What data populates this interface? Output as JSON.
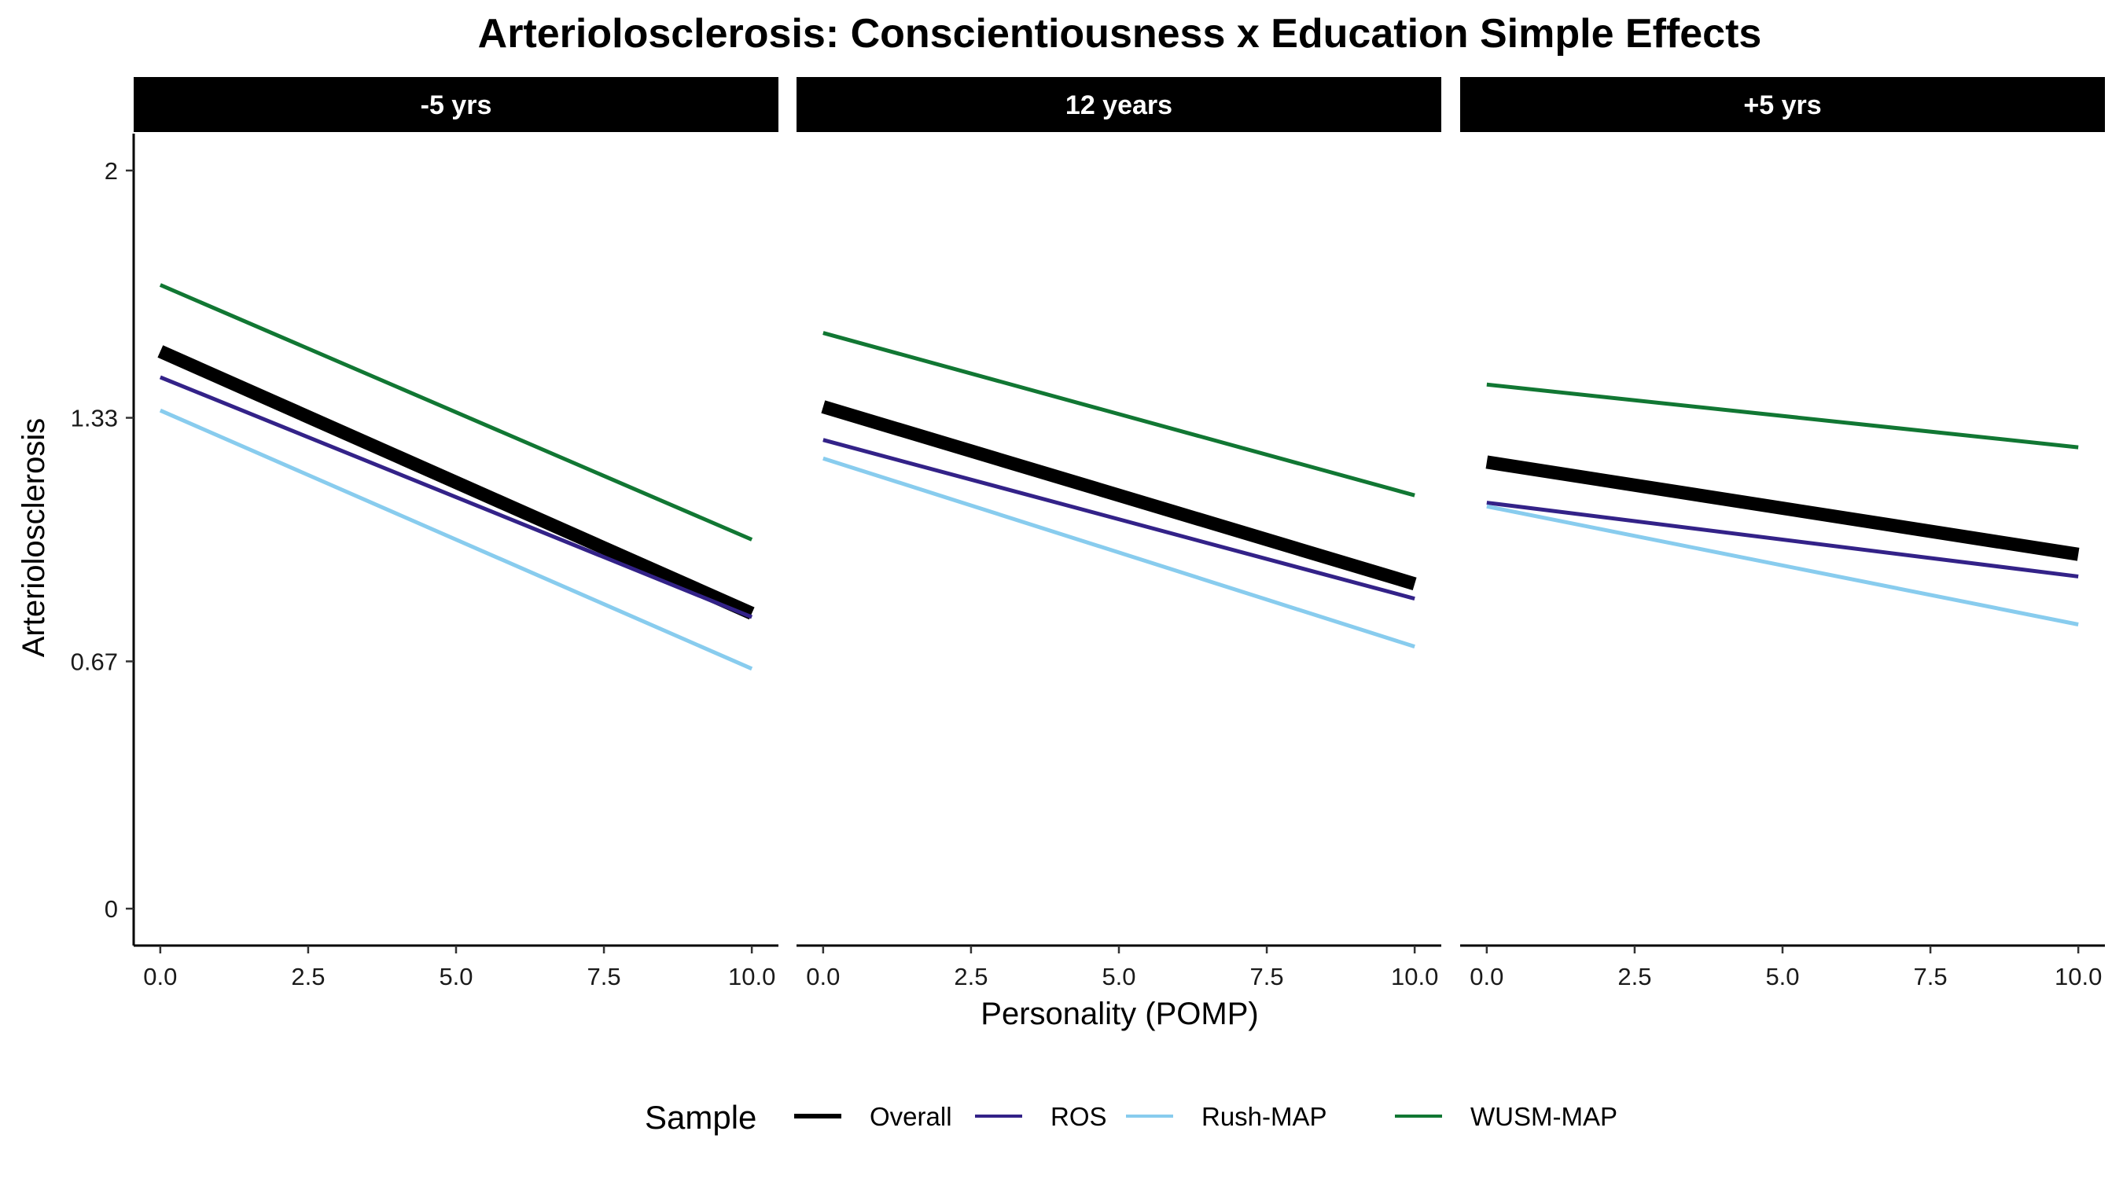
{
  "chart_data": {
    "type": "line",
    "title": "Arteriolosclerosis: Conscientiousness x Education Simple Effects",
    "xlabel": "Personality (POMP)",
    "ylabel": "Arteriolosclerosis",
    "xlim": [
      -0.45,
      10.45
    ],
    "ylim": [
      -0.1,
      2.1
    ],
    "x_ticks": [
      0,
      2.5,
      5,
      7.5,
      10
    ],
    "x_tick_labels": [
      "0.0",
      "2.5",
      "5.0",
      "7.5",
      "10.0"
    ],
    "y_ticks": [
      0,
      0.67,
      1.33,
      2
    ],
    "y_tick_labels": [
      "0",
      "0.67",
      "1.33",
      "2"
    ],
    "grid": false,
    "legend": {
      "title": "Sample",
      "position": "bottom",
      "entries": [
        "Overall",
        "ROS",
        "Rush-MAP",
        "WUSM-MAP"
      ]
    },
    "series_styles": [
      {
        "name": "Overall",
        "color": "#000000",
        "width": "thick"
      },
      {
        "name": "ROS",
        "color": "#332288",
        "width": "thin"
      },
      {
        "name": "Rush-MAP",
        "color": "#88CCEE",
        "width": "thin"
      },
      {
        "name": "WUSM-MAP",
        "color": "#117733",
        "width": "thin"
      }
    ],
    "panels": [
      {
        "label": "-5 yrs",
        "x": [
          0,
          10
        ],
        "series": [
          {
            "name": "Overall",
            "values": [
              1.51,
              0.8
            ]
          },
          {
            "name": "ROS",
            "values": [
              1.44,
              0.79
            ]
          },
          {
            "name": "Rush-MAP",
            "values": [
              1.35,
              0.65
            ]
          },
          {
            "name": "WUSM-MAP",
            "values": [
              1.69,
              1.0
            ]
          }
        ]
      },
      {
        "label": "12 years",
        "x": [
          0,
          10
        ],
        "series": [
          {
            "name": "Overall",
            "values": [
              1.36,
              0.88
            ]
          },
          {
            "name": "ROS",
            "values": [
              1.27,
              0.84
            ]
          },
          {
            "name": "Rush-MAP",
            "values": [
              1.22,
              0.71
            ]
          },
          {
            "name": "WUSM-MAP",
            "values": [
              1.56,
              1.12
            ]
          }
        ]
      },
      {
        "label": "+5 yrs",
        "x": [
          0,
          10
        ],
        "series": [
          {
            "name": "Overall",
            "values": [
              1.21,
              0.96
            ]
          },
          {
            "name": "ROS",
            "values": [
              1.1,
              0.9
            ]
          },
          {
            "name": "Rush-MAP",
            "values": [
              1.09,
              0.77
            ]
          },
          {
            "name": "WUSM-MAP",
            "values": [
              1.42,
              1.25
            ]
          }
        ]
      }
    ]
  }
}
